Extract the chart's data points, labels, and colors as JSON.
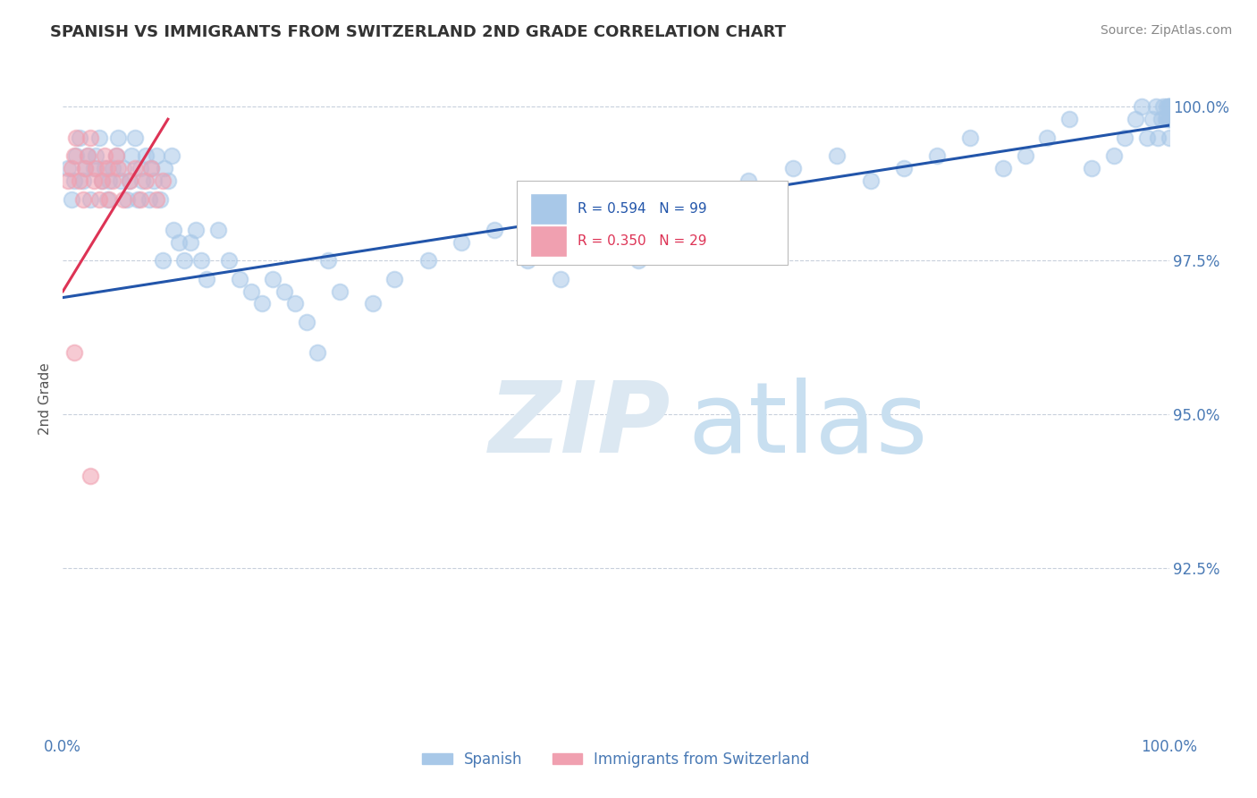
{
  "title": "SPANISH VS IMMIGRANTS FROM SWITZERLAND 2ND GRADE CORRELATION CHART",
  "source": "Source: ZipAtlas.com",
  "ylabel": "2nd Grade",
  "x_tick_labels": [
    "0.0%",
    "100.0%"
  ],
  "y_tick_labels": [
    "92.5%",
    "95.0%",
    "97.5%",
    "100.0%"
  ],
  "y_ticks": [
    0.925,
    0.95,
    0.975,
    1.0
  ],
  "xlim": [
    0.0,
    1.0
  ],
  "ylim": [
    0.898,
    1.007
  ],
  "legend_labels": [
    "Spanish",
    "Immigrants from Switzerland"
  ],
  "legend_r_blue": "R = 0.594",
  "legend_n_blue": "N = 99",
  "legend_r_pink": "R = 0.350",
  "legend_n_pink": "N = 29",
  "blue_color": "#a8c8e8",
  "pink_color": "#f0a0b0",
  "blue_line_color": "#2255aa",
  "pink_line_color": "#dd3355",
  "grid_color": "#c8d0dc",
  "text_color": "#4a7ab5",
  "title_color": "#333333",
  "watermark_zip_color": "#dce8f2",
  "watermark_atlas_color": "#c8dff0",
  "blue_scatter_x": [
    0.005,
    0.008,
    0.01,
    0.012,
    0.015,
    0.018,
    0.02,
    0.022,
    0.025,
    0.028,
    0.03,
    0.033,
    0.035,
    0.038,
    0.04,
    0.042,
    0.045,
    0.048,
    0.05,
    0.052,
    0.055,
    0.058,
    0.06,
    0.062,
    0.065,
    0.068,
    0.07,
    0.072,
    0.075,
    0.078,
    0.08,
    0.082,
    0.085,
    0.088,
    0.09,
    0.092,
    0.095,
    0.098,
    0.1,
    0.105,
    0.11,
    0.115,
    0.12,
    0.125,
    0.13,
    0.14,
    0.15,
    0.16,
    0.17,
    0.18,
    0.19,
    0.2,
    0.21,
    0.22,
    0.23,
    0.24,
    0.25,
    0.28,
    0.3,
    0.33,
    0.36,
    0.39,
    0.42,
    0.45,
    0.48,
    0.52,
    0.55,
    0.58,
    0.62,
    0.66,
    0.7,
    0.73,
    0.76,
    0.79,
    0.82,
    0.85,
    0.87,
    0.89,
    0.91,
    0.93,
    0.95,
    0.96,
    0.97,
    0.975,
    0.98,
    0.985,
    0.988,
    0.99,
    0.993,
    0.995,
    0.997,
    0.998,
    0.999,
    1.0,
    1.0,
    1.0,
    1.0,
    1.0,
    1.0
  ],
  "blue_scatter_y": [
    0.99,
    0.985,
    0.988,
    0.992,
    0.995,
    0.988,
    0.99,
    0.992,
    0.985,
    0.99,
    0.992,
    0.995,
    0.988,
    0.99,
    0.985,
    0.988,
    0.99,
    0.992,
    0.995,
    0.988,
    0.99,
    0.985,
    0.988,
    0.992,
    0.995,
    0.985,
    0.99,
    0.988,
    0.992,
    0.985,
    0.99,
    0.988,
    0.992,
    0.985,
    0.975,
    0.99,
    0.988,
    0.992,
    0.98,
    0.978,
    0.975,
    0.978,
    0.98,
    0.975,
    0.972,
    0.98,
    0.975,
    0.972,
    0.97,
    0.968,
    0.972,
    0.97,
    0.968,
    0.965,
    0.96,
    0.975,
    0.97,
    0.968,
    0.972,
    0.975,
    0.978,
    0.98,
    0.975,
    0.972,
    0.978,
    0.975,
    0.98,
    0.985,
    0.988,
    0.99,
    0.992,
    0.988,
    0.99,
    0.992,
    0.995,
    0.99,
    0.992,
    0.995,
    0.998,
    0.99,
    0.992,
    0.995,
    0.998,
    1.0,
    0.995,
    0.998,
    1.0,
    0.995,
    0.998,
    1.0,
    0.998,
    1.0,
    0.998,
    1.0,
    0.998,
    0.995,
    1.0,
    0.998,
    1.0
  ],
  "pink_scatter_x": [
    0.005,
    0.008,
    0.01,
    0.012,
    0.015,
    0.018,
    0.02,
    0.022,
    0.025,
    0.028,
    0.03,
    0.033,
    0.035,
    0.038,
    0.04,
    0.042,
    0.045,
    0.048,
    0.05,
    0.055,
    0.06,
    0.065,
    0.07,
    0.075,
    0.08,
    0.085,
    0.09,
    0.01,
    0.025
  ],
  "pink_scatter_y": [
    0.988,
    0.99,
    0.992,
    0.995,
    0.988,
    0.985,
    0.99,
    0.992,
    0.995,
    0.988,
    0.99,
    0.985,
    0.988,
    0.992,
    0.99,
    0.985,
    0.988,
    0.992,
    0.99,
    0.985,
    0.988,
    0.99,
    0.985,
    0.988,
    0.99,
    0.985,
    0.988,
    0.96,
    0.94
  ],
  "blue_line": [
    0.0,
    1.0,
    0.969,
    0.997
  ],
  "pink_line": [
    0.0,
    0.095,
    0.97,
    0.998
  ]
}
